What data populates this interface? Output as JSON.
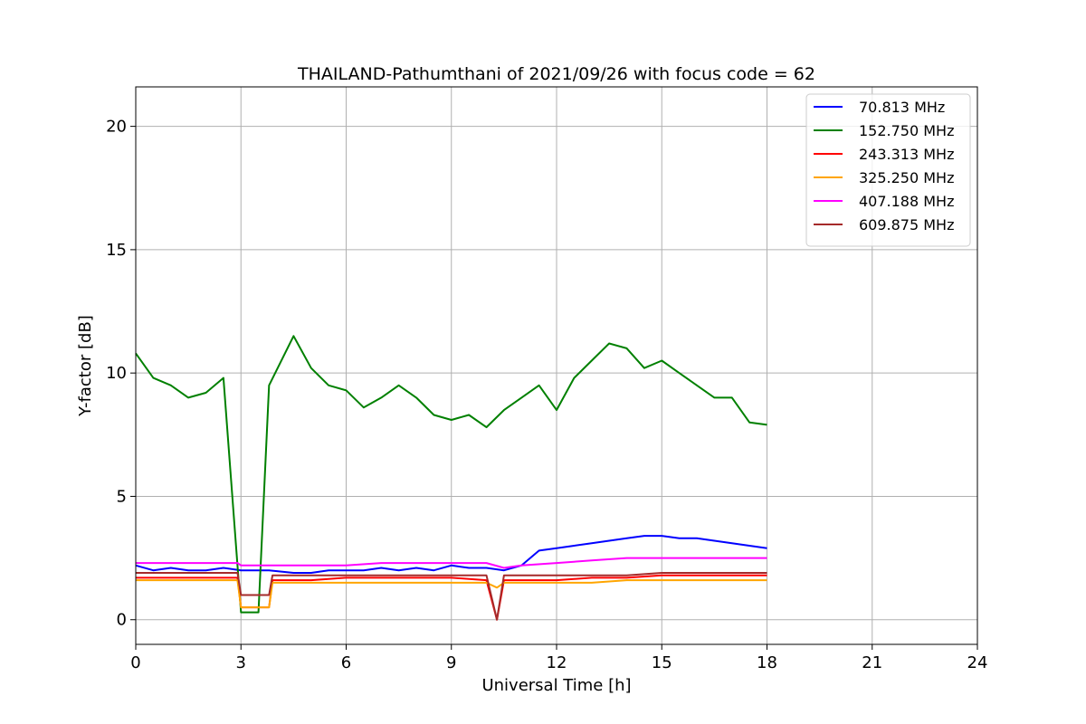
{
  "chart_data": {
    "type": "line",
    "title": "THAILAND-Pathumthani of 2021/09/26 with focus code = 62",
    "xlabel": "Universal Time [h]",
    "ylabel": "Y-factor [dB]",
    "xlim": [
      0,
      24
    ],
    "ylim": [
      -1,
      21.6
    ],
    "xticks": [
      0,
      3,
      6,
      9,
      12,
      15,
      18,
      21,
      24
    ],
    "yticks": [
      0,
      5,
      10,
      15,
      20
    ],
    "grid": true,
    "legend_position": "top-right",
    "series": [
      {
        "name": " 70.813 MHz",
        "color": "#0000ff",
        "x": [
          0,
          0.5,
          1,
          1.5,
          2,
          2.5,
          3,
          3.5,
          3.8,
          4.5,
          5,
          5.5,
          6,
          6.5,
          7,
          7.5,
          8,
          8.5,
          9,
          9.5,
          10,
          10.5,
          11,
          11.5,
          12,
          12.5,
          13,
          13.5,
          14,
          14.5,
          15,
          15.5,
          16,
          16.5,
          17,
          17.5,
          18
        ],
        "y": [
          2.2,
          2.0,
          2.1,
          2.0,
          2.0,
          2.1,
          2.0,
          2.0,
          2.0,
          1.9,
          1.9,
          2.0,
          2.0,
          2.0,
          2.1,
          2.0,
          2.1,
          2.0,
          2.2,
          2.1,
          2.1,
          2.0,
          2.2,
          2.8,
          2.9,
          3.0,
          3.1,
          3.2,
          3.3,
          3.4,
          3.4,
          3.3,
          3.3,
          3.2,
          3.1,
          3.0,
          2.9
        ]
      },
      {
        "name": "152.750 MHz",
        "color": "#008000",
        "x": [
          0,
          0.5,
          1,
          1.5,
          2,
          2.5,
          3,
          3.5,
          3.8,
          4.5,
          5,
          5.5,
          6,
          6.5,
          7,
          7.5,
          8,
          8.5,
          9,
          9.5,
          10,
          10.5,
          11,
          11.5,
          12,
          12.5,
          13,
          13.5,
          14,
          14.5,
          15,
          15.5,
          16,
          16.5,
          17,
          17.5,
          18
        ],
        "y": [
          10.8,
          9.8,
          9.5,
          9.0,
          9.2,
          9.8,
          0.3,
          0.3,
          9.5,
          11.5,
          10.2,
          9.5,
          9.3,
          8.6,
          9.0,
          9.5,
          9.0,
          8.3,
          8.1,
          8.3,
          7.8,
          8.5,
          9.0,
          9.5,
          8.5,
          9.8,
          10.5,
          11.2,
          11.0,
          10.2,
          10.5,
          10.0,
          9.5,
          9.0,
          9.0,
          8.0,
          7.9
        ]
      },
      {
        "name": "243.313 MHz",
        "color": "#ff0000",
        "x": [
          0,
          1,
          2,
          2.9,
          3.0,
          3.8,
          3.9,
          5,
          6,
          7,
          8,
          9,
          10,
          10.3,
          10.5,
          11,
          12,
          13,
          14,
          15,
          16,
          17,
          18
        ],
        "y": [
          1.7,
          1.7,
          1.7,
          1.7,
          0.5,
          0.5,
          1.6,
          1.6,
          1.7,
          1.7,
          1.7,
          1.7,
          1.6,
          0.0,
          1.6,
          1.6,
          1.6,
          1.7,
          1.7,
          1.8,
          1.8,
          1.8,
          1.8
        ]
      },
      {
        "name": "325.250 MHz",
        "color": "#ffa500",
        "x": [
          0,
          1,
          2,
          2.9,
          3.0,
          3.8,
          3.9,
          5,
          6,
          7,
          8,
          9,
          10,
          10.3,
          10.5,
          11,
          12,
          13,
          14,
          15,
          16,
          17,
          18
        ],
        "y": [
          1.6,
          1.6,
          1.6,
          1.6,
          0.5,
          0.5,
          1.5,
          1.5,
          1.5,
          1.5,
          1.5,
          1.5,
          1.5,
          1.3,
          1.5,
          1.5,
          1.5,
          1.5,
          1.6,
          1.6,
          1.6,
          1.6,
          1.6
        ]
      },
      {
        "name": "407.188 MHz",
        "color": "#ff00ff",
        "x": [
          0,
          1,
          2,
          2.9,
          3.0,
          3.8,
          3.9,
          5,
          6,
          7,
          8,
          9,
          10,
          10.5,
          11,
          12,
          13,
          14,
          15,
          16,
          17,
          18
        ],
        "y": [
          2.3,
          2.3,
          2.3,
          2.3,
          2.2,
          2.2,
          2.2,
          2.2,
          2.2,
          2.3,
          2.3,
          2.3,
          2.3,
          2.1,
          2.2,
          2.3,
          2.4,
          2.5,
          2.5,
          2.5,
          2.5,
          2.5
        ]
      },
      {
        "name": "609.875 MHz",
        "color": "#a52a2a",
        "x": [
          0,
          1,
          2,
          2.9,
          3.0,
          3.8,
          3.9,
          5,
          6,
          7,
          8,
          9,
          10,
          10.3,
          10.5,
          11,
          12,
          13,
          14,
          15,
          16,
          17,
          18
        ],
        "y": [
          1.9,
          1.9,
          1.9,
          1.9,
          1.0,
          1.0,
          1.8,
          1.8,
          1.8,
          1.8,
          1.8,
          1.8,
          1.8,
          0.0,
          1.8,
          1.8,
          1.8,
          1.8,
          1.8,
          1.9,
          1.9,
          1.9,
          1.9
        ]
      }
    ]
  }
}
